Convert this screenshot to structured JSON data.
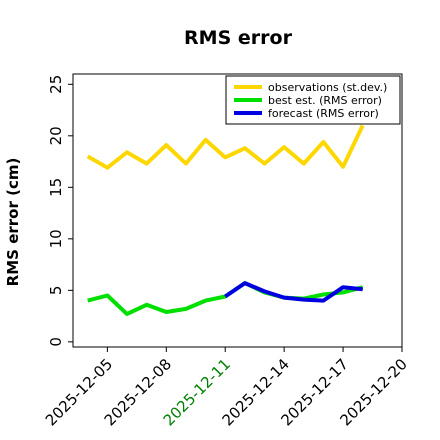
{
  "chart_data": {
    "type": "line",
    "title": "RMS error",
    "ylabel": "RMS error (cm)",
    "xlabel": "",
    "ylim": [
      -0.5,
      26
    ],
    "yticks": [
      0,
      5,
      10,
      15,
      20,
      25
    ],
    "xlim": [
      "2025-12-03T06:00",
      "2025-12-20T00:00"
    ],
    "xticks": [
      {
        "date": "2025-12-05",
        "color": "#000000"
      },
      {
        "date": "2025-12-08",
        "color": "#000000"
      },
      {
        "date": "2025-12-11",
        "color": "#008000"
      },
      {
        "date": "2025-12-14",
        "color": "#000000"
      },
      {
        "date": "2025-12-17",
        "color": "#000000"
      },
      {
        "date": "2025-12-20",
        "color": "#000000"
      }
    ],
    "grid": false,
    "legend_position": "top-right",
    "series": [
      {
        "name": "observations (st.dev.)",
        "color": "#FFD700",
        "points": [
          [
            "2025-12-04T00:00",
            18.0
          ],
          [
            "2025-12-05T00:00",
            16.9
          ],
          [
            "2025-12-06T00:00",
            18.4
          ],
          [
            "2025-12-07T00:00",
            17.3
          ],
          [
            "2025-12-08T00:00",
            19.1
          ],
          [
            "2025-12-09T00:00",
            17.3
          ],
          [
            "2025-12-10T00:00",
            19.6
          ],
          [
            "2025-12-11T00:00",
            17.9
          ],
          [
            "2025-12-12T00:00",
            18.8
          ],
          [
            "2025-12-13T00:00",
            17.3
          ],
          [
            "2025-12-14T00:00",
            18.9
          ],
          [
            "2025-12-15T00:00",
            17.3
          ],
          [
            "2025-12-16T00:00",
            19.4
          ],
          [
            "2025-12-17T00:00",
            17.0
          ],
          [
            "2025-12-18T00:00",
            21.0
          ]
        ]
      },
      {
        "name": "best est. (RMS error)",
        "color": "#00E000",
        "points": [
          [
            "2025-12-04T00:00",
            4.0
          ],
          [
            "2025-12-05T00:00",
            4.5
          ],
          [
            "2025-12-06T00:00",
            2.7
          ],
          [
            "2025-12-07T00:00",
            3.6
          ],
          [
            "2025-12-08T00:00",
            2.9
          ],
          [
            "2025-12-09T00:00",
            3.2
          ],
          [
            "2025-12-10T00:00",
            4.0
          ],
          [
            "2025-12-11T00:00",
            4.4
          ],
          [
            "2025-12-12T00:00",
            5.7
          ],
          [
            "2025-12-13T00:00",
            4.8
          ],
          [
            "2025-12-14T00:00",
            4.3
          ],
          [
            "2025-12-15T00:00",
            4.2
          ],
          [
            "2025-12-16T00:00",
            4.6
          ],
          [
            "2025-12-17T00:00",
            4.8
          ],
          [
            "2025-12-18T00:00",
            5.3
          ]
        ]
      },
      {
        "name": "forecast (RMS error)",
        "color": "#0000E0",
        "points": [
          [
            "2025-12-11T00:00",
            4.4
          ],
          [
            "2025-12-12T00:00",
            5.7
          ],
          [
            "2025-12-13T00:00",
            4.9
          ],
          [
            "2025-12-14T00:00",
            4.3
          ],
          [
            "2025-12-15T00:00",
            4.1
          ],
          [
            "2025-12-16T00:00",
            4.0
          ],
          [
            "2025-12-17T00:00",
            5.3
          ],
          [
            "2025-12-18T00:00",
            5.1
          ]
        ]
      }
    ]
  }
}
